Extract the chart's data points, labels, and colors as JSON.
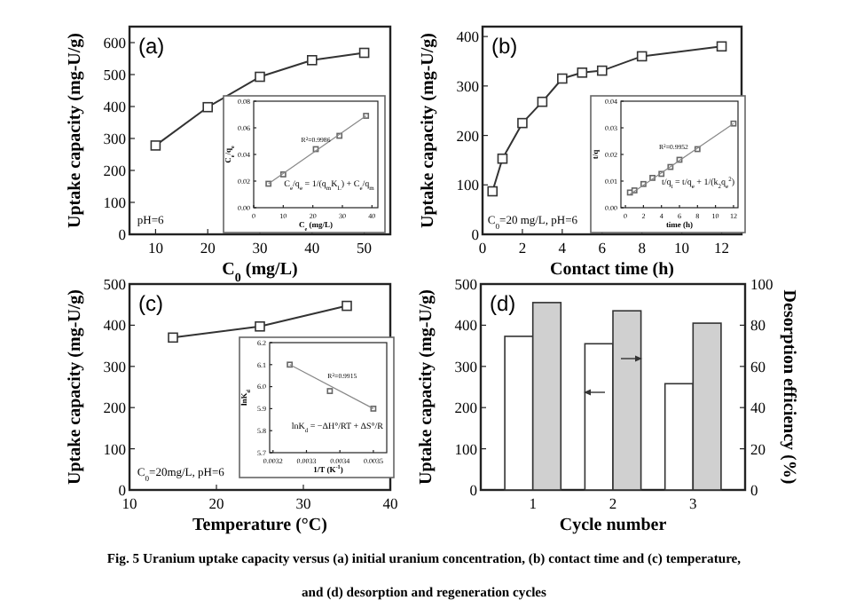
{
  "chart_data": [
    {
      "type": "line",
      "title": "(a)",
      "xlabel": "C$_{0}$ (mg/L)",
      "ylabel": "Uptake capacity (mg-U/g)",
      "marker": "square",
      "xlim": [
        5,
        55
      ],
      "xticks": [
        10,
        20,
        30,
        40,
        50
      ],
      "ylim": [
        0,
        650
      ],
      "yticks": [
        0,
        100,
        200,
        300,
        400,
        500,
        600
      ],
      "annotations": [
        "pH=6"
      ],
      "series": [
        {
          "color": "#333333",
          "x": [
            10,
            20,
            30,
            40,
            50
          ],
          "values": [
            278,
            398,
            493,
            545,
            568
          ]
        }
      ]
    },
    {
      "type": "scatter",
      "xlabel": "C$_{e}$ (mg/L)",
      "ylabel": "C$_{e}$/q$_{e}$",
      "xlim": [
        0,
        42
      ],
      "xticks": [
        0,
        10,
        20,
        30,
        40
      ],
      "ylim": [
        0,
        0.08
      ],
      "yticks": [
        {
          "value": 0,
          "label": "0.00"
        },
        {
          "value": 0.02,
          "label": "0.02"
        },
        {
          "value": 0.04,
          "label": "0.04"
        },
        {
          "value": 0.06,
          "label": "0.06"
        },
        {
          "value": 0.08,
          "label": "0.08"
        }
      ],
      "marker": "square",
      "annotations": [
        "R$^{2}$=0.9986",
        "C$_{e}$/q$_{e}$ = 1/(q$_{m}$K$_{L}$) + C$_{e}$/q$_{m}$"
      ],
      "series": [
        {
          "color": "#666666",
          "x": [
            5,
            10,
            21,
            29,
            38
          ],
          "values": [
            0.018,
            0.025,
            0.044,
            0.054,
            0.069
          ]
        },
        {
          "type": "line",
          "marker": "none",
          "color": "#888888",
          "x": [
            5,
            38
          ],
          "values": [
            0.018,
            0.069
          ]
        }
      ]
    },
    {
      "type": "line",
      "title": "(b)",
      "xlabel": "Contact time (h)",
      "ylabel": "Uptake capacity (mg-U/g)",
      "marker": "square",
      "xlim": [
        0,
        13
      ],
      "xticks": [
        0,
        2,
        4,
        6,
        8,
        10,
        12
      ],
      "ylim": [
        0,
        420
      ],
      "yticks": [
        0,
        100,
        200,
        300,
        400
      ],
      "annotations": [
        "C$_{0}$=20 mg/L, pH=6"
      ],
      "series": [
        {
          "color": "#333333",
          "x": [
            0.5,
            1,
            2,
            3,
            4,
            5,
            6,
            8,
            12
          ],
          "values": [
            87,
            153,
            225,
            268,
            315,
            327,
            331,
            360,
            380
          ]
        }
      ]
    },
    {
      "type": "scatter",
      "xlabel": "time (h)",
      "ylabel": "t/q",
      "xlim": [
        -0.5,
        12.5
      ],
      "xticks": [
        0,
        2,
        4,
        6,
        8,
        10,
        12
      ],
      "ylim": [
        0,
        0.04
      ],
      "yticks": [
        {
          "value": 0,
          "label": "0.00"
        },
        {
          "value": 0.01,
          "label": "0.01"
        },
        {
          "value": 0.02,
          "label": "0.02"
        },
        {
          "value": 0.03,
          "label": "0.03"
        },
        {
          "value": 0.04,
          "label": "0.04"
        }
      ],
      "marker": "square",
      "annotations": [
        "R$^{2}$=0.9952",
        "t/q$_{t}$ = t/q$_{e}$ + 1/(k$_{2}$q$_{e}$$^{2}$)"
      ],
      "series": [
        {
          "color": "#666666",
          "x": [
            0.5,
            1,
            2,
            3,
            4,
            5,
            6,
            8,
            12
          ],
          "values": [
            0.0057,
            0.0065,
            0.0089,
            0.0112,
            0.0127,
            0.0153,
            0.018,
            0.022,
            0.0316
          ]
        },
        {
          "type": "line",
          "marker": "none",
          "color": "#888888",
          "x": [
            0.5,
            12
          ],
          "values": [
            0.005,
            0.0316
          ]
        }
      ]
    },
    {
      "type": "line",
      "title": "(c)",
      "xlabel": "Temperature (°C)",
      "ylabel": "Uptake capacity (mg-U/g)",
      "marker": "square",
      "xlim": [
        10,
        40
      ],
      "xticks": [
        10,
        20,
        30,
        40
      ],
      "ylim": [
        0,
        500
      ],
      "yticks": [
        0,
        100,
        200,
        300,
        400,
        500
      ],
      "annotations": [
        "C$_{0}$=20mg/L, pH=6"
      ],
      "series": [
        {
          "color": "#333333",
          "x": [
            15,
            25,
            35
          ],
          "values": [
            370,
            397,
            447
          ]
        }
      ]
    },
    {
      "type": "scatter",
      "xlabel": "1/T (K$^{-1}$)",
      "ylabel": "lnK$_{d}$",
      "xlim": [
        0.00319,
        0.00354
      ],
      "xticks": [
        0.0032,
        0.0033,
        0.0034,
        0.0035
      ],
      "ylim": [
        5.7,
        6.2
      ],
      "yticks": [
        {
          "value": 5.7,
          "label": "5.7"
        },
        {
          "value": 5.8,
          "label": "5.8"
        },
        {
          "value": 5.9,
          "label": "5.9"
        },
        {
          "value": 6,
          "label": "6.0"
        },
        {
          "value": 6.1,
          "label": "6.1"
        },
        {
          "value": 6.2,
          "label": "6.2"
        }
      ],
      "marker": "square",
      "annotations": [
        "R$^{2}$=0.9915",
        "lnK$_{d}$ = −ΔH°/RT + ΔS°/R"
      ],
      "series": [
        {
          "color": "#666666",
          "x": [
            0.00325,
            0.00337,
            0.0035
          ],
          "values": [
            6.1,
            5.98,
            5.9
          ]
        },
        {
          "type": "line",
          "marker": "none",
          "color": "#888888",
          "x": [
            0.00325,
            0.0035
          ],
          "values": [
            6.1,
            5.9
          ]
        }
      ]
    },
    {
      "type": "bar",
      "title": "(d)",
      "xlabel": "Cycle number",
      "ylabel": "Uptake capacity (mg-U/g)",
      "y2label": "Desorption efficiency (%)",
      "categories": [
        "1",
        "2",
        "3"
      ],
      "ylim": [
        0,
        500
      ],
      "yticks": [
        0,
        100,
        200,
        300,
        400,
        500
      ],
      "y2lim": [
        0,
        100
      ],
      "y2ticks": [
        0,
        20,
        40,
        60,
        80,
        100
      ],
      "series": [
        {
          "color": "#ffffff",
          "values": [
            373,
            355,
            258
          ]
        },
        {
          "color": "#d0d0d0",
          "axis": "y2",
          "values": [
            91,
            87,
            81
          ]
        }
      ]
    },
    {
      "type": "other",
      "annotations": [
        "Fig. 5 Uranium uptake capacity versus (a) initial uranium concentration, (b) contact time and (c) temperature,",
        "and (d) desorption and regeneration cycles"
      ]
    }
  ]
}
